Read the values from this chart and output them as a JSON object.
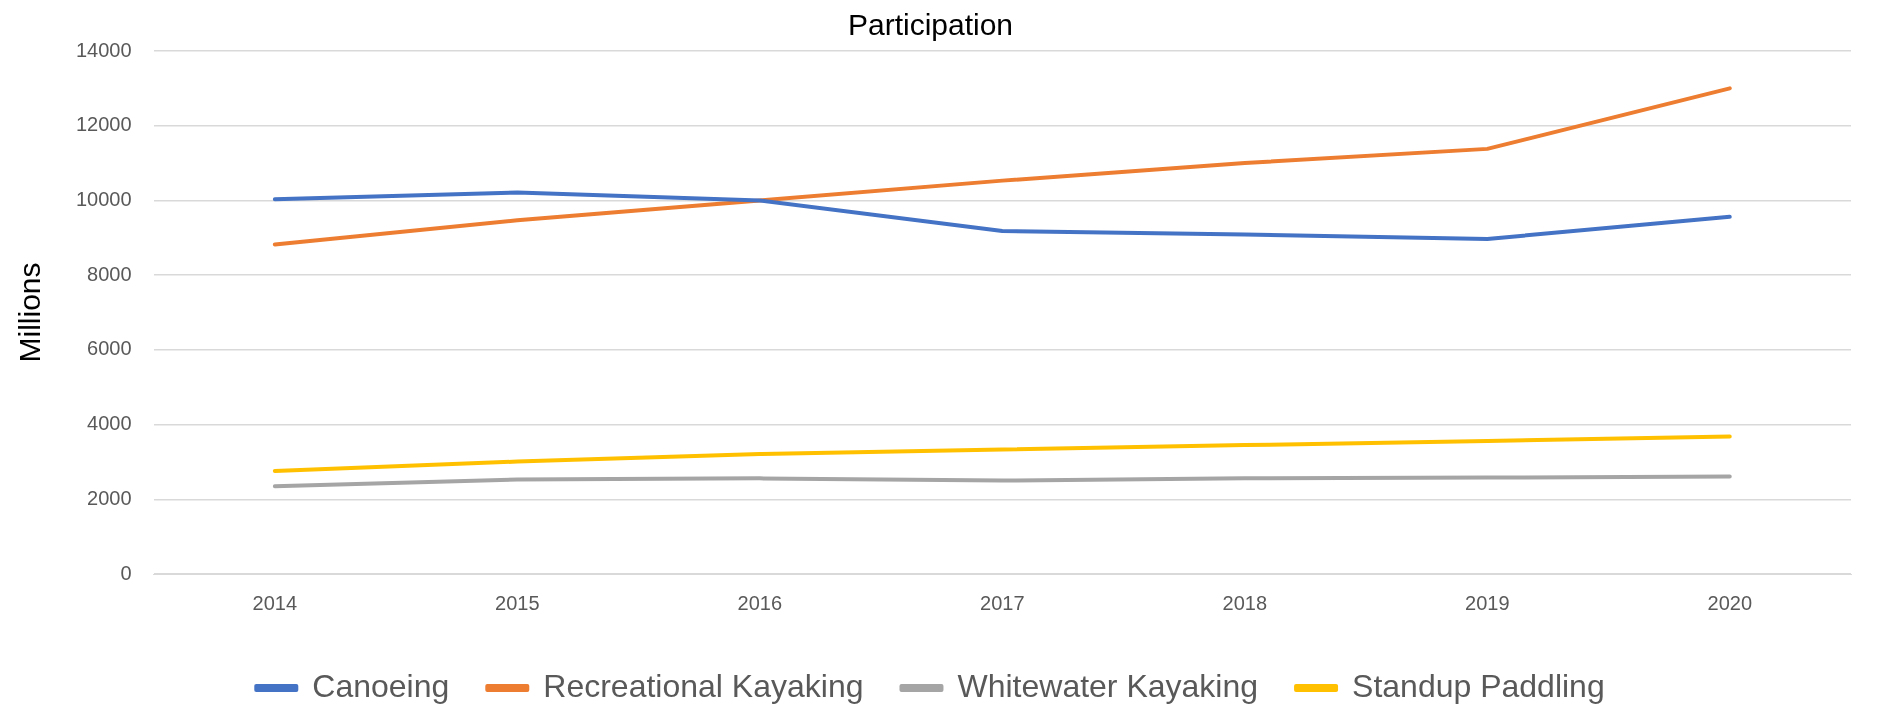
{
  "chart_data": {
    "type": "line",
    "title": "Participation",
    "ylabel": "Millions",
    "categories": [
      "2014",
      "2015",
      "2016",
      "2017",
      "2018",
      "2019",
      "2020"
    ],
    "series": [
      {
        "name": "Canoeing",
        "color": "#4472c4",
        "values": [
          10030,
          10210,
          10000,
          9180,
          9090,
          8970,
          9560
        ]
      },
      {
        "name": "Recreational Kayaking",
        "color": "#ed7d31",
        "values": [
          8820,
          9470,
          10000,
          10530,
          11000,
          11380,
          13000
        ]
      },
      {
        "name": "Whitewater Kayaking",
        "color": "#a5a5a5",
        "values": [
          2350,
          2530,
          2560,
          2500,
          2560,
          2580,
          2610
        ]
      },
      {
        "name": "Standup Paddling",
        "color": "#ffc000",
        "values": [
          2760,
          3010,
          3210,
          3330,
          3450,
          3560,
          3680
        ]
      }
    ],
    "ylim": [
      0,
      14000
    ],
    "yticks": [
      0,
      2000,
      4000,
      6000,
      8000,
      10000,
      12000,
      14000
    ],
    "grid": "y",
    "legend": "bottom",
    "marker": "none",
    "line_style": "solid"
  }
}
